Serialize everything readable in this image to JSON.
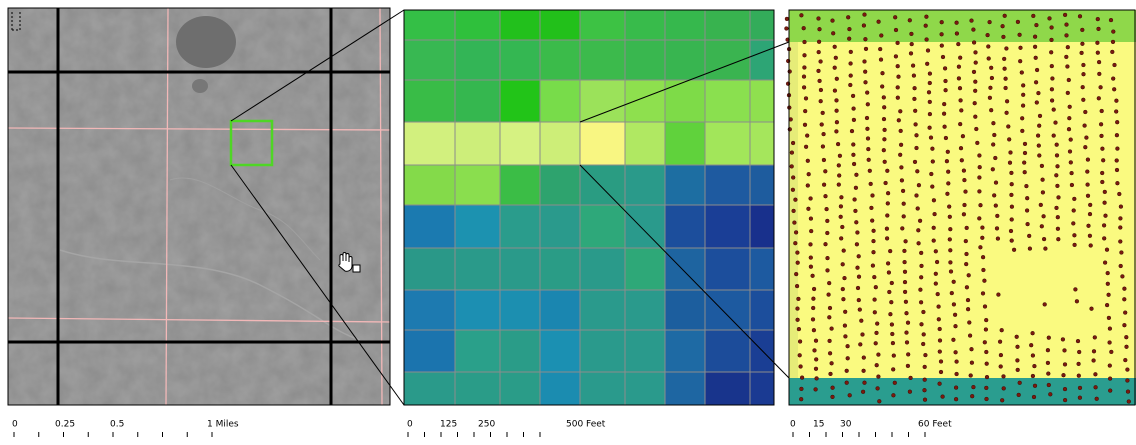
{
  "scale_bars": [
    {
      "labels": [
        "0",
        "0.25",
        "0.5",
        "1 Miles"
      ]
    },
    {
      "labels": [
        "0",
        "125",
        "250",
        "500 Feet"
      ]
    },
    {
      "labels": [
        "0",
        "15",
        "30",
        "60 Feet"
      ]
    }
  ]
}
